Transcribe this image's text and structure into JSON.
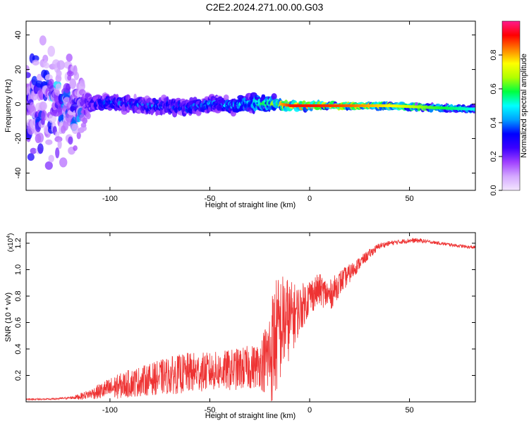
{
  "title": "C2E2.2024.271.00.00.G03",
  "colors": {
    "snr_line": "#ee3333",
    "colormap": [
      "#f3e6ff",
      "#d4a8ff",
      "#a040ff",
      "#3b00ff",
      "#0000ff",
      "#00a0ff",
      "#00ffff",
      "#00ff40",
      "#b0ff00",
      "#ffff00",
      "#ff8000",
      "#ff0000",
      "#ff1a8c"
    ]
  },
  "chart_data": [
    {
      "type": "heatmap",
      "xlabel": "Height of straight line (km)",
      "ylabel": "Frequency (Hz)",
      "xlim": [
        -142,
        83
      ],
      "ylim": [
        -50,
        48
      ],
      "xticks": [
        -100,
        -50,
        0,
        50
      ],
      "yticks": [
        -40,
        -20,
        0,
        20,
        40
      ],
      "colorbar": {
        "label": "Normalized spectral amplitude",
        "range": [
          0,
          1
        ],
        "ticks": [
          0.0,
          0.2,
          0.4,
          0.6,
          0.8
        ]
      },
      "ridge": {
        "x": [
          -142,
          -118,
          -110,
          -100,
          -90,
          -80,
          -70,
          -60,
          -50,
          -40,
          -30,
          -20,
          -15,
          -10,
          0,
          10,
          20,
          40,
          60,
          83
        ],
        "frequency": [
          0,
          0,
          0,
          1,
          0,
          -1,
          -1,
          -2,
          0,
          -1,
          0,
          1,
          0,
          -1,
          -1,
          -1,
          -1,
          -1,
          -2,
          -3
        ],
        "spread": [
          40,
          40,
          6,
          6,
          6,
          6,
          6,
          6,
          6,
          6,
          7,
          6,
          4,
          3,
          3,
          2,
          2,
          2,
          2,
          2
        ],
        "amplitude": [
          0.05,
          0.1,
          0.3,
          0.4,
          0.35,
          0.4,
          0.38,
          0.4,
          0.42,
          0.45,
          0.5,
          0.6,
          0.8,
          0.9,
          0.9,
          0.88,
          0.85,
          0.75,
          0.62,
          0.5
        ]
      }
    },
    {
      "type": "line",
      "xlabel": "Height of straight line (km)",
      "ylabel": "SNR (10 * v/v)",
      "y_multiplier": "(x10",
      "y_multiplier_exp": "4",
      "y_multiplier_close": ")",
      "xlim": [
        -142,
        83
      ],
      "ylim": [
        0,
        1.28
      ],
      "xticks": [
        -100,
        -50,
        0,
        50
      ],
      "yticks": [
        0.2,
        0.4,
        0.6,
        0.8,
        1.0,
        1.2
      ],
      "series": [
        {
          "x": [
            -142,
            -130,
            -120,
            -115,
            -110,
            -100,
            -90,
            -80,
            -70,
            -60,
            -50,
            -40,
            -30,
            -25,
            -20,
            -18,
            -15,
            -12,
            -10,
            -5,
            0,
            5,
            10,
            15,
            20,
            25,
            30,
            35,
            40,
            45,
            50,
            55,
            60,
            65,
            70,
            75,
            80,
            83
          ],
          "mean": [
            0.02,
            0.02,
            0.03,
            0.04,
            0.06,
            0.1,
            0.14,
            0.17,
            0.2,
            0.22,
            0.23,
            0.24,
            0.26,
            0.28,
            0.35,
            0.45,
            0.55,
            0.62,
            0.62,
            0.7,
            0.8,
            0.85,
            0.8,
            0.9,
            0.97,
            1.05,
            1.12,
            1.18,
            1.2,
            1.21,
            1.22,
            1.22,
            1.21,
            1.2,
            1.19,
            1.18,
            1.17,
            1.17
          ],
          "noise": [
            0.005,
            0.005,
            0.008,
            0.02,
            0.03,
            0.07,
            0.09,
            0.1,
            0.12,
            0.13,
            0.12,
            0.13,
            0.14,
            0.14,
            0.3,
            0.4,
            0.35,
            0.3,
            0.25,
            0.15,
            0.12,
            0.1,
            0.1,
            0.08,
            0.06,
            0.04,
            0.03,
            0.02,
            0.015,
            0.015,
            0.015,
            0.015,
            0.01,
            0.01,
            0.01,
            0.01,
            0.01,
            0.01
          ]
        }
      ]
    }
  ]
}
